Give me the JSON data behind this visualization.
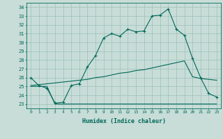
{
  "xlabel": "Humidex (Indice chaleur)",
  "bg_color": "#c8ddd8",
  "grid_color": "#9cc0b8",
  "line_color": "#006858",
  "xlim": [
    -0.5,
    23.5
  ],
  "ylim": [
    22.5,
    34.5
  ],
  "xticks": [
    0,
    1,
    2,
    3,
    4,
    5,
    6,
    7,
    8,
    9,
    10,
    11,
    12,
    13,
    14,
    15,
    16,
    17,
    18,
    19,
    20,
    21,
    22,
    23
  ],
  "yticks": [
    23,
    24,
    25,
    26,
    27,
    28,
    29,
    30,
    31,
    32,
    33,
    34
  ],
  "line1_x": [
    0,
    1,
    2,
    3,
    4,
    5,
    6,
    7,
    8,
    9,
    10,
    11,
    12,
    13,
    14,
    15,
    16,
    17,
    18,
    19,
    20,
    21,
    22,
    23
  ],
  "line1_y": [
    26.0,
    25.1,
    24.8,
    23.1,
    23.2,
    25.1,
    25.3,
    27.2,
    28.5,
    30.5,
    31.0,
    30.7,
    31.5,
    31.2,
    31.3,
    33.0,
    33.1,
    33.8,
    31.5,
    30.8,
    28.2,
    26.0,
    24.2,
    23.8
  ],
  "line2_x": [
    0,
    1,
    2,
    3,
    4,
    5,
    6,
    7,
    8,
    9,
    10,
    11,
    12,
    13,
    14,
    15,
    16,
    17,
    18,
    19,
    20,
    21,
    22,
    23
  ],
  "line2_y": [
    25.1,
    25.2,
    25.3,
    25.4,
    25.5,
    25.6,
    25.7,
    25.8,
    26.0,
    26.1,
    26.3,
    26.5,
    26.6,
    26.8,
    26.9,
    27.1,
    27.3,
    27.5,
    27.7,
    27.9,
    26.1,
    25.9,
    25.8,
    25.7
  ],
  "line3_x": [
    0,
    1,
    2,
    3,
    4,
    5,
    6,
    7,
    8,
    9,
    10,
    11,
    12,
    13,
    14,
    15,
    16,
    17,
    18,
    19,
    20,
    21,
    22,
    23
  ],
  "line3_y": [
    25.0,
    25.0,
    25.0,
    23.0,
    23.0,
    23.0,
    23.0,
    23.0,
    23.0,
    23.0,
    23.0,
    23.0,
    23.0,
    23.0,
    23.0,
    23.0,
    23.0,
    23.0,
    23.0,
    23.0,
    23.0,
    23.0,
    23.0,
    23.0
  ]
}
